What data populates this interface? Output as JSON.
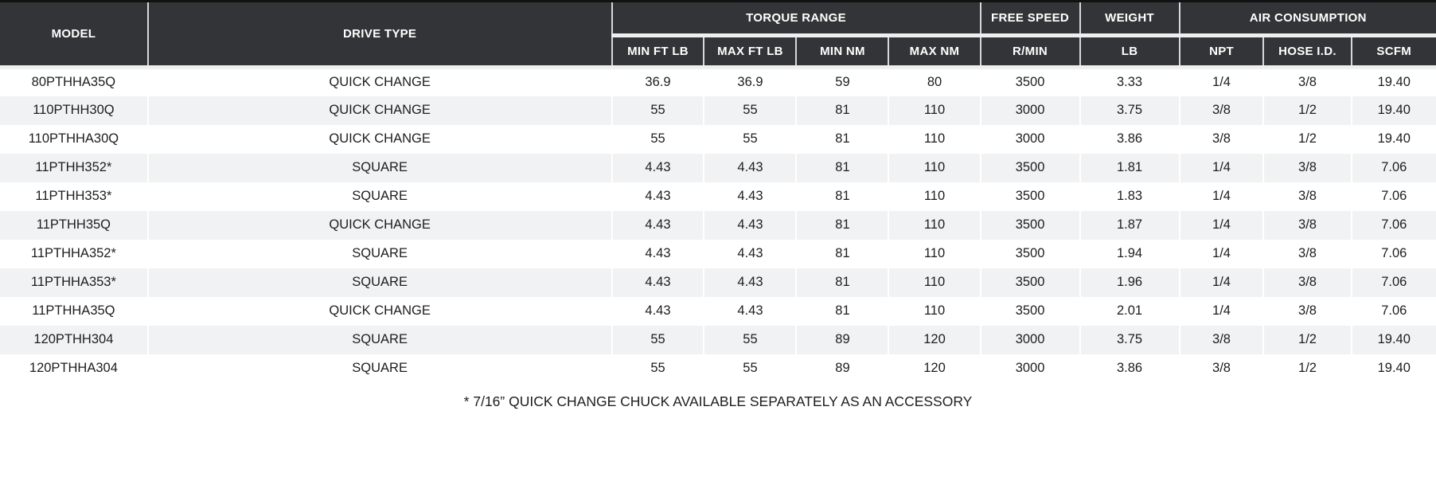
{
  "colors": {
    "header_bg": "#333437",
    "header_text": "#ffffff",
    "row_stripe": "#f1f2f3",
    "top_border": "#111111",
    "body_text": "#1d1d1f"
  },
  "table": {
    "groups": {
      "model": "MODEL",
      "drive_type": "DRIVE TYPE",
      "torque_range": "TORQUE RANGE",
      "free_speed": "FREE SPEED",
      "weight": "WEIGHT",
      "air_consumption": "AIR CONSUMPTION"
    },
    "subheaders": [
      "MIN FT LB",
      "MAX FT LB",
      "MIN NM",
      "MAX NM",
      "R/MIN",
      "LB",
      "NPT",
      "HOSE I.D.",
      "SCFM"
    ],
    "rows": [
      [
        "80PTHHA35Q",
        "QUICK CHANGE",
        "36.9",
        "36.9",
        "59",
        "80",
        "3500",
        "3.33",
        "1/4",
        "3/8",
        "19.40"
      ],
      [
        "110PTHH30Q",
        "QUICK CHANGE",
        "55",
        "55",
        "81",
        "110",
        "3000",
        "3.75",
        "3/8",
        "1/2",
        "19.40"
      ],
      [
        "110PTHHA30Q",
        "QUICK CHANGE",
        "55",
        "55",
        "81",
        "110",
        "3000",
        "3.86",
        "3/8",
        "1/2",
        "19.40"
      ],
      [
        "11PTHH352*",
        "SQUARE",
        "4.43",
        "4.43",
        "81",
        "110",
        "3500",
        "1.81",
        "1/4",
        "3/8",
        "7.06"
      ],
      [
        "11PTHH353*",
        "SQUARE",
        "4.43",
        "4.43",
        "81",
        "110",
        "3500",
        "1.83",
        "1/4",
        "3/8",
        "7.06"
      ],
      [
        "11PTHH35Q",
        "QUICK CHANGE",
        "4.43",
        "4.43",
        "81",
        "110",
        "3500",
        "1.87",
        "1/4",
        "3/8",
        "7.06"
      ],
      [
        "11PTHHA352*",
        "SQUARE",
        "4.43",
        "4.43",
        "81",
        "110",
        "3500",
        "1.94",
        "1/4",
        "3/8",
        "7.06"
      ],
      [
        "11PTHHA353*",
        "SQUARE",
        "4.43",
        "4.43",
        "81",
        "110",
        "3500",
        "1.96",
        "1/4",
        "3/8",
        "7.06"
      ],
      [
        "11PTHHA35Q",
        "QUICK CHANGE",
        "4.43",
        "4.43",
        "81",
        "110",
        "3500",
        "2.01",
        "1/4",
        "3/8",
        "7.06"
      ],
      [
        "120PTHH304",
        "SQUARE",
        "55",
        "55",
        "89",
        "120",
        "3000",
        "3.75",
        "3/8",
        "1/2",
        "19.40"
      ],
      [
        "120PTHHA304",
        "SQUARE",
        "55",
        "55",
        "89",
        "120",
        "3000",
        "3.86",
        "3/8",
        "1/2",
        "19.40"
      ]
    ],
    "footnote": "* 7/16” QUICK CHANGE CHUCK AVAILABLE SEPARATELY AS AN ACCESSORY"
  },
  "chart_data": {
    "type": "table",
    "columns": [
      "MODEL",
      "DRIVE TYPE",
      "TORQUE RANGE MIN FT LB",
      "TORQUE RANGE MAX FT LB",
      "TORQUE RANGE MIN NM",
      "TORQUE RANGE MAX NM",
      "FREE SPEED R/MIN",
      "WEIGHT LB",
      "AIR CONSUMPTION NPT",
      "AIR CONSUMPTION HOSE I.D.",
      "AIR CONSUMPTION SCFM"
    ],
    "rows": [
      [
        "80PTHHA35Q",
        "QUICK CHANGE",
        36.9,
        36.9,
        59,
        80,
        3500,
        3.33,
        "1/4",
        "3/8",
        19.4
      ],
      [
        "110PTHH30Q",
        "QUICK CHANGE",
        55,
        55,
        81,
        110,
        3000,
        3.75,
        "3/8",
        "1/2",
        19.4
      ],
      [
        "110PTHHA30Q",
        "QUICK CHANGE",
        55,
        55,
        81,
        110,
        3000,
        3.86,
        "3/8",
        "1/2",
        19.4
      ],
      [
        "11PTHH352*",
        "SQUARE",
        4.43,
        4.43,
        81,
        110,
        3500,
        1.81,
        "1/4",
        "3/8",
        7.06
      ],
      [
        "11PTHH353*",
        "SQUARE",
        4.43,
        4.43,
        81,
        110,
        3500,
        1.83,
        "1/4",
        "3/8",
        7.06
      ],
      [
        "11PTHH35Q",
        "QUICK CHANGE",
        4.43,
        4.43,
        81,
        110,
        3500,
        1.87,
        "1/4",
        "3/8",
        7.06
      ],
      [
        "11PTHHA352*",
        "SQUARE",
        4.43,
        4.43,
        81,
        110,
        3500,
        1.94,
        "1/4",
        "3/8",
        7.06
      ],
      [
        "11PTHHA353*",
        "SQUARE",
        4.43,
        4.43,
        81,
        110,
        3500,
        1.96,
        "1/4",
        "3/8",
        7.06
      ],
      [
        "11PTHHA35Q",
        "QUICK CHANGE",
        4.43,
        4.43,
        81,
        110,
        3500,
        2.01,
        "1/4",
        "3/8",
        7.06
      ],
      [
        "120PTHH304",
        "SQUARE",
        55,
        55,
        89,
        120,
        3000,
        3.75,
        "3/8",
        "1/2",
        19.4
      ],
      [
        "120PTHHA304",
        "SQUARE",
        55,
        55,
        89,
        120,
        3000,
        3.86,
        "3/8",
        "1/2",
        19.4
      ]
    ],
    "title": "",
    "annotations": [
      "* 7/16” QUICK CHANGE CHUCK AVAILABLE SEPARATELY AS AN ACCESSORY"
    ]
  }
}
